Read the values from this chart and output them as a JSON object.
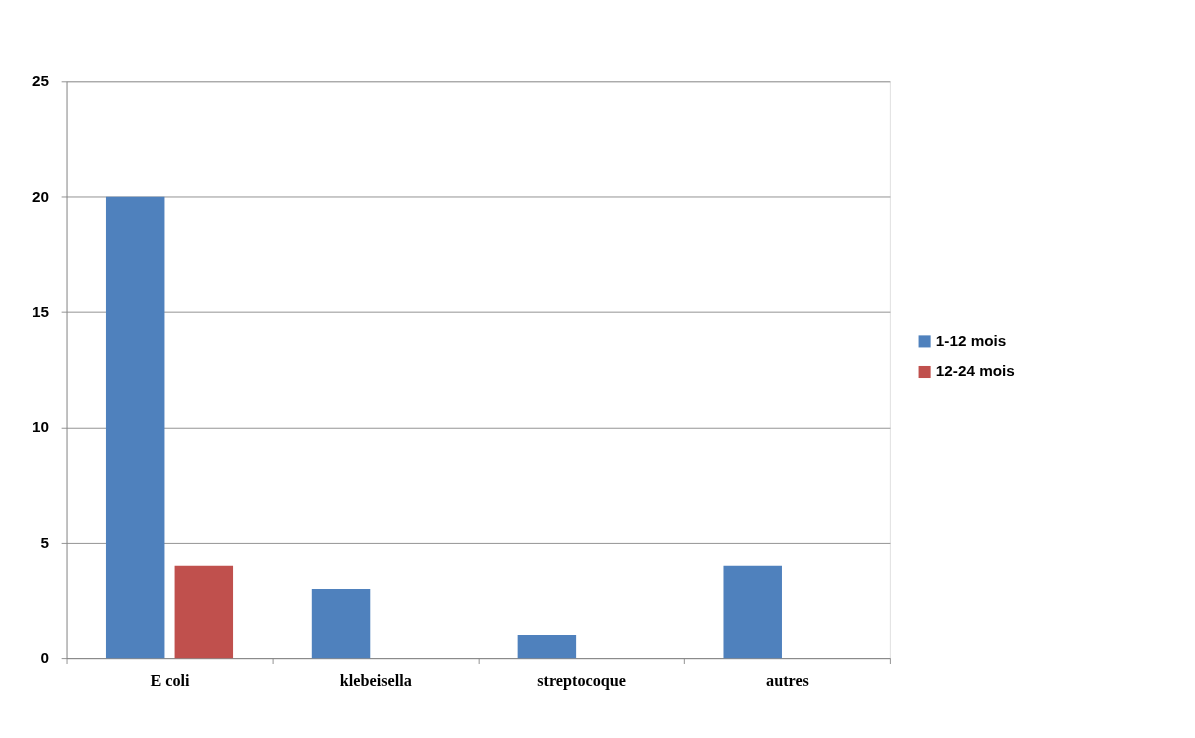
{
  "chart_data": {
    "type": "bar",
    "categories": [
      "E coli",
      "klebeisella",
      "streptocoque",
      "autres"
    ],
    "series": [
      {
        "name": "1-12 mois",
        "color": "#4f81bd",
        "values": [
          20,
          3,
          1,
          4
        ]
      },
      {
        "name": "12-24 mois",
        "color": "#c0504d",
        "values": [
          4,
          0,
          0,
          0
        ]
      }
    ],
    "ylim": [
      0,
      25
    ],
    "yticks": [
      0,
      5,
      10,
      15,
      20,
      25
    ],
    "grid": "y",
    "legend": "right"
  }
}
